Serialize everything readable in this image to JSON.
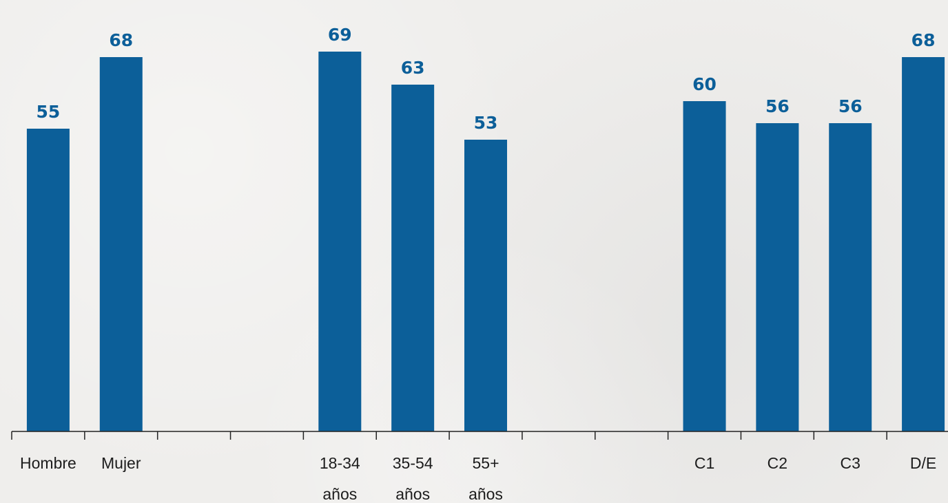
{
  "chart_data": {
    "type": "bar",
    "categories": [
      [
        "Hombre"
      ],
      [
        "Mujer"
      ],
      [],
      [],
      [
        "18-34",
        "años"
      ],
      [
        "35-54",
        "años"
      ],
      [
        "55+",
        "años"
      ],
      [],
      [],
      [
        "C1"
      ],
      [
        "C2"
      ],
      [
        "C3"
      ],
      [
        "D/E"
      ]
    ],
    "values": [
      55,
      68,
      null,
      null,
      69,
      63,
      53,
      null,
      null,
      60,
      56,
      56,
      68
    ],
    "data_labels": [
      "55",
      "68",
      "",
      "",
      "69",
      "63",
      "53",
      "",
      "",
      "60",
      "56",
      "56",
      "68"
    ],
    "ylim": [
      0,
      70
    ],
    "grid": false,
    "colors": {
      "bar": "#0c5f99",
      "label": "#0c5f99"
    }
  }
}
